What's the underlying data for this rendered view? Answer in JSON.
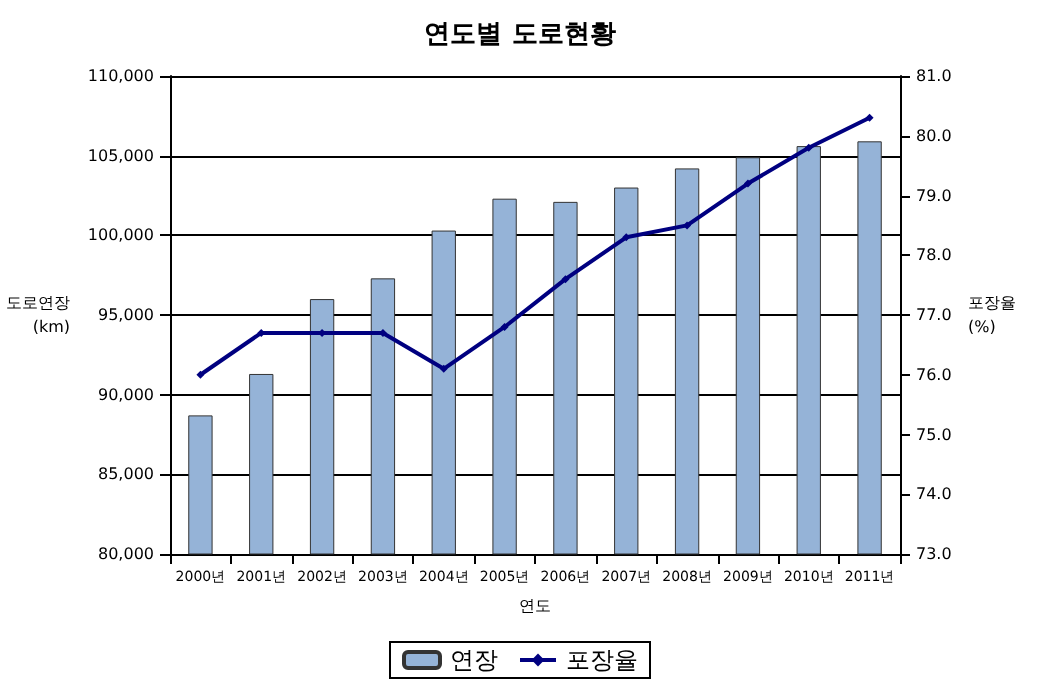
{
  "chart_data": {
    "type": "bar",
    "title": "연도별 도로현황",
    "xlabel": "연도",
    "ylabel": "도로연장\n(km)",
    "y2label": "포장율\n(%)",
    "categories": [
      "2000년",
      "2001년",
      "2002년",
      "2003년",
      "2004년",
      "2005년",
      "2006년",
      "2007년",
      "2008년",
      "2009년",
      "2010년",
      "2011년"
    ],
    "series": [
      {
        "name": "연장",
        "color": "#95b3d7",
        "values": [
          88700,
          91300,
          96000,
          97300,
          100300,
          102300,
          102100,
          103000,
          104200,
          104900,
          105600,
          105900
        ]
      },
      {
        "name": "포장율",
        "type": "line",
        "axis": "y2",
        "color": "#000080",
        "marker": "diamond",
        "values": [
          76.0,
          76.7,
          76.7,
          76.7,
          76.1,
          76.8,
          77.6,
          78.3,
          78.5,
          79.2,
          79.8,
          80.3
        ]
      }
    ],
    "ylim": [
      80000,
      110000
    ],
    "yticks": [
      {
        "value": 80000,
        "label": "80,000"
      },
      {
        "value": 85000,
        "label": "85,000"
      },
      {
        "value": 90000,
        "label": "90,000"
      },
      {
        "value": 95000,
        "label": "95,000"
      },
      {
        "value": 100000,
        "label": "100,000"
      },
      {
        "value": 105000,
        "label": "105,000"
      },
      {
        "value": 110000,
        "label": "110,000"
      }
    ],
    "y2lim": [
      73,
      81
    ],
    "y2ticks": [
      {
        "value": 73,
        "label": "73.0"
      },
      {
        "value": 74,
        "label": "74.0"
      },
      {
        "value": 75,
        "label": "75.0"
      },
      {
        "value": 76,
        "label": "76.0"
      },
      {
        "value": 77,
        "label": "77.0"
      },
      {
        "value": 78,
        "label": "78.0"
      },
      {
        "value": 79,
        "label": "79.0"
      },
      {
        "value": 80,
        "label": "80.0"
      },
      {
        "value": 81,
        "label": "81.0"
      }
    ],
    "grid": "y",
    "legend": "bottom"
  }
}
